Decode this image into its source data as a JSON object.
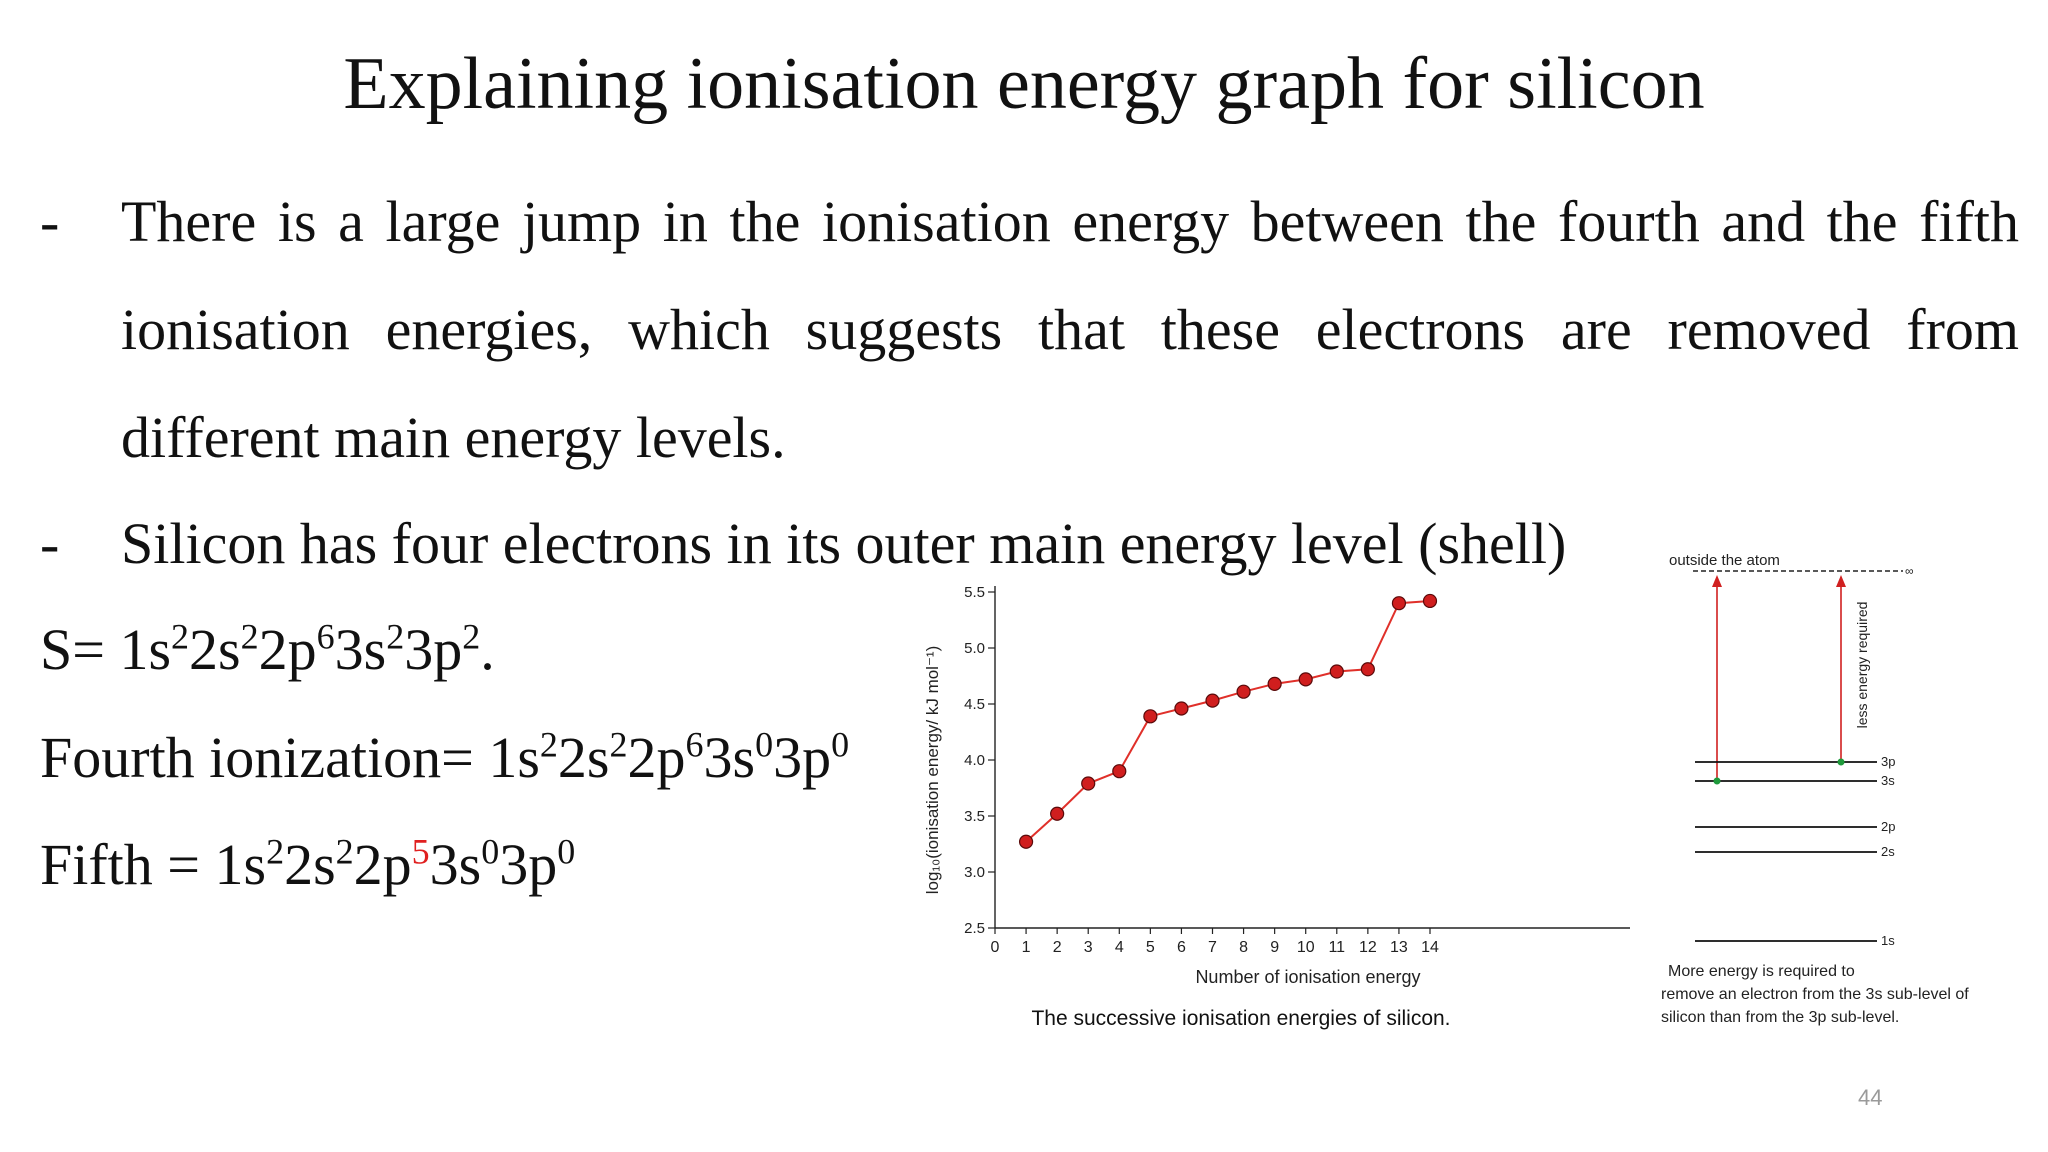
{
  "slide": {
    "title": "Explaining ionisation energy graph for silicon",
    "bullets": [
      {
        "marker": "-",
        "text": "There is a large jump in the ionisation energy between the fourth and the fifth ionisation energies, which suggests that these electrons are removed from different main energy levels."
      },
      {
        "marker": "-",
        "text": "Silicon has four electrons in its outer main energy level (shell)"
      }
    ],
    "equations": {
      "config_label": "S= ",
      "fourth_label": "Fourth ionization= ",
      "fifth_label": "Fifth = "
    },
    "page_number": "44"
  },
  "figure": {
    "caption": "The successive ionisation energies of silicon.",
    "xlabel": "Number of ionisation energy",
    "ylabel": "log₁₀(ionisation energy/ kJ mol⁻¹)"
  },
  "diagram": {
    "top_label": "outside the atom",
    "infinity": "∞",
    "arrow_label": "less energy required",
    "levels": [
      "3p",
      "3s",
      "2p",
      "2s",
      "1s"
    ],
    "caption_lines": [
      "More energy is required to",
      "remove an electron from the 3s sub-level of",
      "silicon than from the 3p sub-level."
    ]
  },
  "chart_data": {
    "type": "line",
    "title": "",
    "xlabel": "Number of ionisation energy",
    "ylabel": "log₁₀(ionisation energy/ kJ mol⁻¹)",
    "x": [
      1,
      2,
      3,
      4,
      5,
      6,
      7,
      8,
      9,
      10,
      11,
      12,
      13,
      14
    ],
    "y": [
      3.27,
      3.52,
      3.79,
      3.9,
      4.39,
      4.46,
      4.53,
      4.61,
      4.68,
      4.72,
      4.79,
      4.81,
      5.4,
      5.42
    ],
    "xlim": [
      0,
      14
    ],
    "ylim": [
      2.5,
      5.5
    ],
    "xticks": [
      "0",
      "1",
      "2",
      "3",
      "4",
      "5",
      "6",
      "7",
      "8",
      "9",
      "10",
      "11",
      "12",
      "13",
      "14"
    ],
    "yticks": [
      "2.5",
      "3.0",
      "3.5",
      "4.0",
      "4.5",
      "5.0",
      "5.5"
    ],
    "grid": false,
    "line_color": "#e0302a",
    "marker_color": "#d01e1e"
  }
}
